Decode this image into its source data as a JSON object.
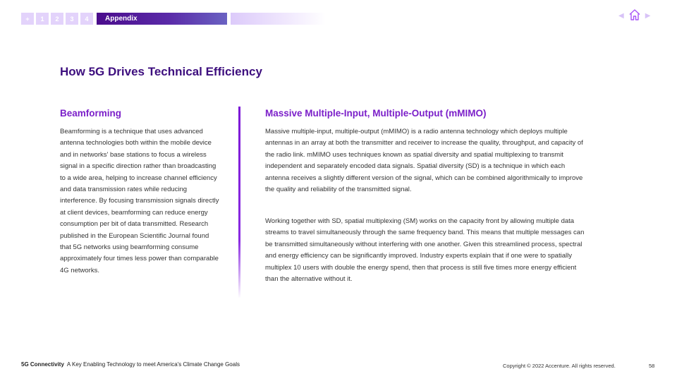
{
  "nav": {
    "first_icon": "+",
    "items": [
      "1",
      "2",
      "3",
      "4"
    ],
    "active_label": "Appendix"
  },
  "icons": {
    "prev": "triangle-left-icon",
    "home": "home-icon",
    "next": "triangle-right-icon",
    "accent_color": "#a855f7"
  },
  "title": "How 5G Drives Technical Efficiency",
  "left": {
    "heading": "Beamforming",
    "body": "Beamforming is a technique that uses advanced antenna technologies both within the mobile device and in networks' base stations to focus a wireless signal in a specific direction rather than broadcasting to a wide area, helping to increase channel efficiency and data transmission rates while reducing interference. By focusing transmission signals directly at client devices, beamforming can reduce energy consumption per bit of data transmitted. Research published in the European Scientific Journal found that 5G networks using beamforming consume approximately four times less power than comparable 4G networks."
  },
  "right": {
    "heading": "Massive Multiple-Input, Multiple-Output (mMIMO)",
    "body1": "Massive multiple-input, multiple-output (mMIMO) is a radio antenna technology which deploys multiple antennas in an array at both the transmitter and receiver to increase the quality, throughput, and capacity of the radio link. mMIMO uses techniques known as spatial diversity and spatial multiplexing to transmit independent and separately encoded data signals. Spatial diversity (SD) is a technique in which each antenna receives a slightly different version of the signal, which can be combined algorithmically to improve the quality and reliability of the transmitted signal.",
    "body2": "Working together with SD, spatial multiplexing (SM) works on the capacity front by allowing multiple data streams to travel simultaneously through the same frequency band. This means that multiple messages can be transmitted simultaneously without interfering with one another. Given this streamlined process, spectral and energy efficiency can be significantly improved. Industry experts explain that if one were to spatially multiplex 10 users with double the energy spend, then that process is still five times more energy efficient than the alternative without it."
  },
  "footer": {
    "brand": "5G Connectivity",
    "subtitle": "A Key Enabling Technology to meet America's Climate Change Goals",
    "copyright": "Copyright © 2022 Accenture. All rights reserved.",
    "page": "58"
  }
}
